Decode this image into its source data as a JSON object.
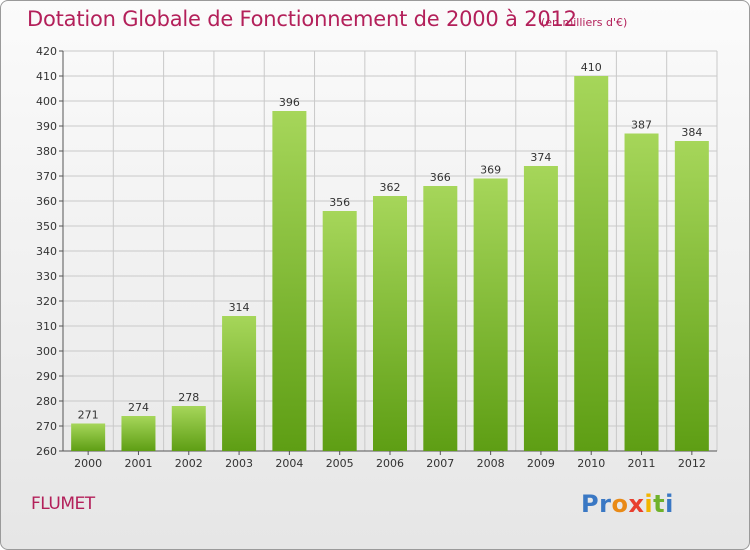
{
  "title": "Dotation Globale de Fonctionnement de 2000 à 2012",
  "subtitle": "(en milliers d'€)",
  "commune": "FLUMET",
  "logo": {
    "letters": [
      {
        "char": "P",
        "color": "#3a78c4"
      },
      {
        "char": "r",
        "color": "#3a78c4"
      },
      {
        "char": "o",
        "color": "#e98a16"
      },
      {
        "char": "x",
        "color": "#e83f2e"
      },
      {
        "char": "i",
        "color": "#f2b500"
      },
      {
        "char": "t",
        "color": "#6fb22b"
      },
      {
        "char": "i",
        "color": "#3a78c4"
      }
    ]
  },
  "colors": {
    "bar_top": "#a6d65a",
    "bar_bottom": "#5e9e14",
    "title": "#b3205a",
    "grid": "#c9c9c9"
  },
  "chart_data": {
    "type": "bar",
    "categories": [
      "2000",
      "2001",
      "2002",
      "2003",
      "2004",
      "2005",
      "2006",
      "2007",
      "2008",
      "2009",
      "2010",
      "2011",
      "2012"
    ],
    "values": [
      271,
      274,
      278,
      314,
      396,
      356,
      362,
      366,
      369,
      374,
      410,
      387,
      384
    ],
    "ylim": [
      260,
      420
    ],
    "ytick_step": 10,
    "grid": true
  }
}
